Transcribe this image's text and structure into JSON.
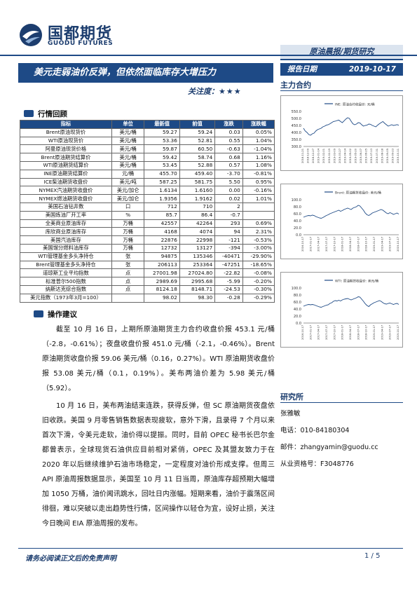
{
  "header": {
    "logo_cn": "国都期货",
    "logo_en": "GUODU FUTURES",
    "report_type": "原油晨报/期货研究",
    "title": "美元走弱油价反弹，但依然面临库存大增压力",
    "attention_label": "关注度：",
    "attention_stars": "★★★",
    "date_label": "报告日期",
    "date_value": "2019-10-17",
    "contract_label": "主力合约"
  },
  "review": {
    "title": "行情回顾",
    "columns": [
      "指标",
      "单位",
      "最新值",
      "前值",
      "涨跌",
      "涨跌幅"
    ],
    "rows": [
      [
        "Brent原油现货价",
        "美元/桶",
        "59.27",
        "59.24",
        "0.03",
        "0.05%"
      ],
      [
        "WTI原油现货价",
        "美元/桶",
        "53.36",
        "52.81",
        "0.55",
        "1.04%"
      ],
      [
        "阿曼原油现货价格",
        "美元/桶",
        "59.87",
        "60.50",
        "-0.63",
        "-1.04%"
      ],
      [
        "Brent原油期货结算价",
        "美元/桶",
        "59.42",
        "58.74",
        "0.68",
        "1.16%"
      ],
      [
        "WTI原油期货结算价",
        "美元/桶",
        "53.45",
        "52.88",
        "0.57",
        "1.08%"
      ],
      [
        "INE原油期货结算价",
        "元/桶",
        "455.70",
        "459.40",
        "-3.70",
        "-0.81%"
      ],
      [
        "ICE柴油期货收盘价",
        "美元/吨",
        "587.25",
        "581.75",
        "5.50",
        "0.95%"
      ],
      [
        "NYMEX汽油期货收盘价",
        "美元/加仑",
        "1.6134",
        "1.6160",
        "0.00",
        "-0.16%"
      ],
      [
        "NYMEX燃油期货收盘价",
        "美元/加仑",
        "1.9356",
        "1.9162",
        "0.02",
        "1.01%"
      ],
      [
        "美国石油钻井数",
        "口",
        "712",
        "710",
        "2",
        ""
      ],
      [
        "美国炼油厂开工率",
        "%",
        "85.7",
        "86.4",
        "-0.7",
        ""
      ],
      [
        "全美商业原油库存",
        "万桶",
        "42557",
        "42264",
        "293",
        "0.69%"
      ],
      [
        "库欣商业原油库存",
        "万桶",
        "4168",
        "4074",
        "94",
        "2.31%"
      ],
      [
        "美国汽油库存",
        "万桶",
        "22876",
        "22998",
        "-121",
        "-0.53%"
      ],
      [
        "美国馏分燃料油库存",
        "万桶",
        "12732",
        "13127",
        "-394",
        "-3.00%"
      ],
      [
        "WTI管理基金多头净持仓",
        "张",
        "94875",
        "135346",
        "-40471",
        "-29.90%"
      ],
      [
        "Brent管理基金多头净持仓",
        "张",
        "206113",
        "253364",
        "-47251",
        "-18.65%"
      ],
      [
        "道琼斯工业平均指数",
        "点",
        "27001.98",
        "27024.80",
        "-22.82",
        "-0.08%"
      ],
      [
        "标准普尔500指数",
        "点",
        "2989.69",
        "2995.68",
        "-5.99",
        "-0.20%"
      ],
      [
        "纳斯达克综合指数",
        "点",
        "8124.18",
        "8148.71",
        "-24.53",
        "-0.30%"
      ],
      [
        "美元指数（1973年3月=100）",
        "",
        "98.02",
        "98.30",
        "-0.28",
        "-0.29%"
      ]
    ]
  },
  "advice": {
    "title": "操作建议",
    "paragraphs": [
      "截至 10 月 16 日，上期所原油期货主力合约收盘价报 453.1 元/桶（-2.8，-0.61%）；夜盘收盘价报 451.0 元/桶（-2.1，-0.46%）。Brent 原油期货收盘价报 59.06 美元/桶（0.16，0.27%）。WTI 原油期货收盘价报 53.08 美元/桶（0.1，0.19%）。美布两油价差为 5.98 美元/桶（5.92）。",
      "10 月 16 日，美布两油结束连跌，获得反弹，但 SC 原油期货夜盘依旧收跌。美国 9 月零售销售数据表现疲软，意外下滑，且录得 7 个月以来首次下滑，令美元走软，油价得以提振。同时，目前 OPEC 秘书长巴尔金都曾表示，全球现货石油供应目前相对紧俏，OPEC 及其盟友致力于在 2020 年以后继续维护石油市场稳定，一定程度对油价形成支撑。但周三 API 原油周报数据显示，美国至 10 月 11 日当周，原油库存超预期大幅增加 1050 万桶，油价闻讯跳水，回吐日内涨幅。短期来看，油价于震荡区间徘徊，难以突破以走出趋势性行情，区间操作以轻仓为宜，设好止损，关注今日晚间 EIA 原油周报的发布。"
    ]
  },
  "charts": [
    {
      "legend": "INE: 原油合约收盘价: 元/桶",
      "yticks": [
        "550.0",
        "500.0",
        "450.0",
        "400.0",
        "350.0",
        "300.0"
      ],
      "xticks": [
        "2018-11-21",
        "2018-12-09",
        "2018-12-27",
        "2019-01-14",
        "2019-02-01",
        "2019-02-19",
        "2019-03-09",
        "2019-03-27",
        "2019-04-14",
        "2019-05-02",
        "2019-05-20",
        "2019-06-07",
        "2019-06-25",
        "2019-07-13",
        "2019-07-31",
        "2019-08-18",
        "2019-09-05",
        "2019-09-23",
        "2019-10-11"
      ],
      "color": "#1e4a86",
      "ylim": [
        300,
        550
      ],
      "values": [
        430,
        410,
        400,
        385,
        380,
        390,
        395,
        410,
        420,
        425,
        430,
        440,
        445,
        452,
        455,
        462,
        470,
        478,
        480,
        485,
        488,
        478,
        470,
        482,
        495,
        505,
        500,
        480,
        462,
        455,
        460,
        470,
        468,
        455,
        445,
        450,
        452,
        460,
        458,
        450,
        445,
        440,
        452,
        462,
        470,
        478,
        465,
        455,
        445,
        450,
        455,
        450,
        452,
        456,
        451
      ]
    },
    {
      "legend": "Brent: 原油期货收盘价: 美元/桶",
      "yticks": [
        "100.0",
        "80.0",
        "60.0",
        "40.0",
        "20.0",
        "0.0"
      ],
      "xticks": [
        "2016-10-17",
        "2017-01-17",
        "2017-04-17",
        "2017-07-17",
        "2017-10-17",
        "2018-01-17",
        "2018-04-17",
        "2018-07-17",
        "2018-10-17",
        "2019-01-17",
        "2019-04-17",
        "2019-07-17",
        "2019-10-17"
      ],
      "color": "#1e4a86",
      "ylim": [
        0,
        100
      ],
      "values": [
        50,
        52,
        54,
        55,
        54,
        56,
        55,
        52,
        50,
        48,
        47,
        49,
        52,
        55,
        57,
        60,
        62,
        64,
        66,
        68,
        70,
        67,
        69,
        72,
        74,
        76,
        74,
        72,
        76,
        78,
        80,
        84,
        82,
        76,
        70,
        62,
        57,
        55,
        58,
        62,
        64,
        66,
        68,
        70,
        72,
        70,
        66,
        62,
        60,
        63,
        61,
        58,
        60,
        62,
        59
      ]
    },
    {
      "legend": "WTI: 原油期货收盘价: 美元/桶",
      "yticks": [
        "100.0",
        "80.0",
        "60.0",
        "40.0",
        "20.0",
        "0.0"
      ],
      "xticks": [
        "2016-10-17",
        "2017-01-17",
        "2017-04-17",
        "2017-07-17",
        "2017-10-17",
        "2018-01-17",
        "2018-04-17",
        "2018-07-17",
        "2018-10-17",
        "2019-01-17",
        "2019-04-17",
        "2019-07-17",
        "2019-10-17"
      ],
      "color": "#1e4a86",
      "ylim": [
        0,
        100
      ],
      "values": [
        48,
        50,
        52,
        53,
        52,
        53,
        52,
        50,
        48,
        46,
        45,
        47,
        49,
        51,
        52,
        56,
        58,
        62,
        64,
        63,
        65,
        63,
        66,
        68,
        69,
        70,
        68,
        66,
        68,
        70,
        72,
        75,
        74,
        68,
        62,
        55,
        50,
        47,
        52,
        55,
        58,
        60,
        62,
        64,
        62,
        58,
        55,
        54,
        56,
        57,
        55,
        53,
        55,
        56,
        53
      ]
    }
  ],
  "research": {
    "title": "研究所",
    "name": "张雅敏",
    "phone_label": "电话：",
    "phone": "010-84180304",
    "email_label": "邮件：",
    "email": "zhangyamin@guodu.cc",
    "cert_label": "从业资格号：",
    "cert": "F3048776"
  },
  "footer": {
    "disclaimer": "请务必阅读正文后的免责声明",
    "page": "1 / 5"
  }
}
